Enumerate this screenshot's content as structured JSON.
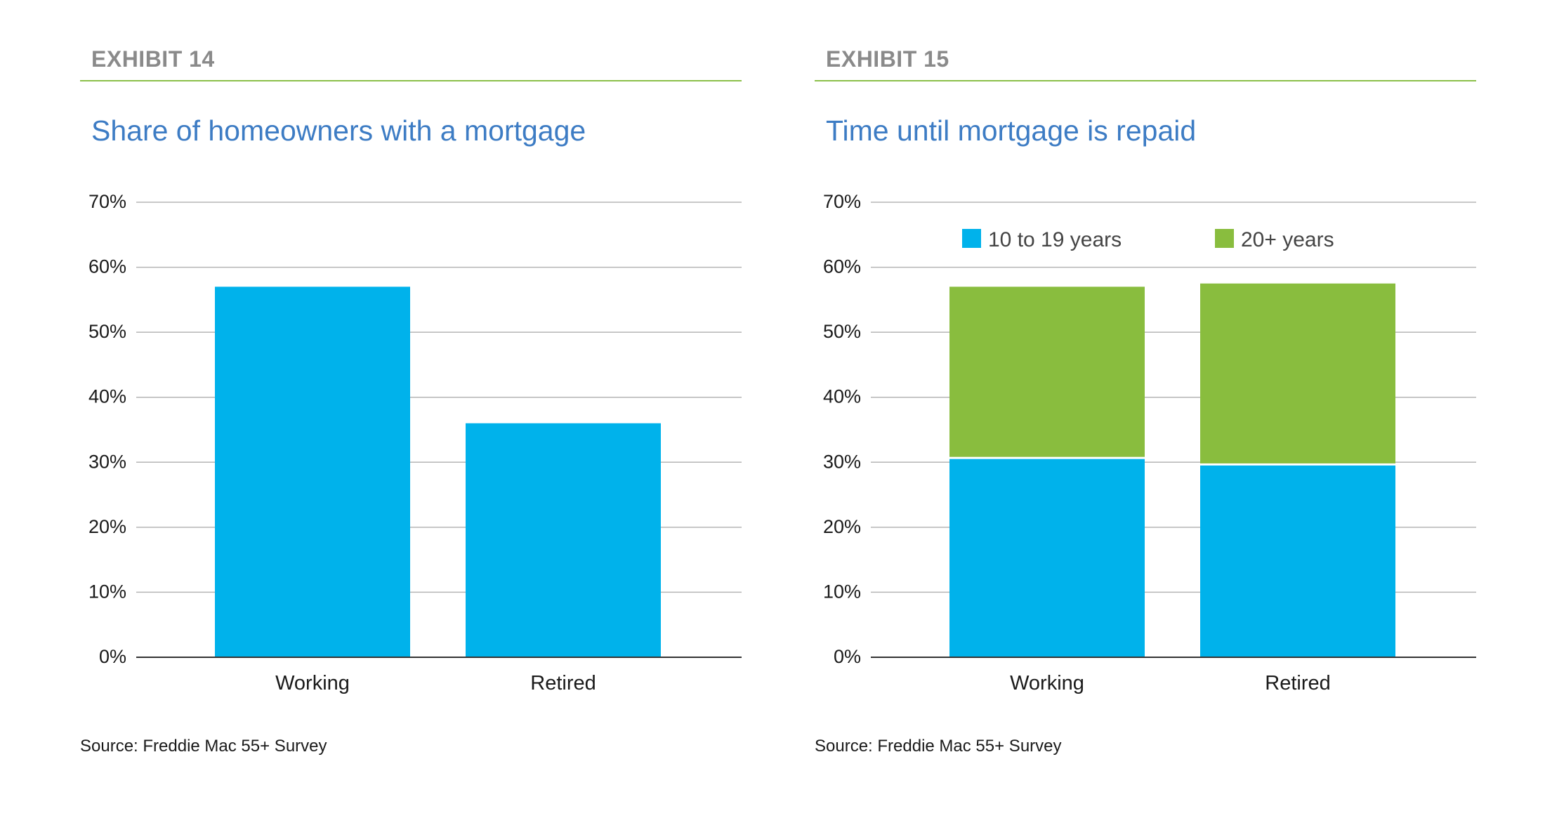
{
  "panels": [
    {
      "exhibit": "EXHIBIT 14",
      "title": "Share of homeowners with a mortgage",
      "source": "Source: Freddie Mac 55+ Survey"
    },
    {
      "exhibit": "EXHIBIT 15",
      "title": "Time until mortgage is repaid",
      "source": "Source: Freddie Mac 55+ Survey"
    }
  ],
  "colors": {
    "blue_bar": "#00b2eb",
    "green_bar": "#89bd3e",
    "exhibit_text": "#8a8a8a",
    "title_text": "#3d7cc4",
    "rule": "#8cc04a",
    "gridline": "#b5b5b5",
    "axis": "#333333"
  },
  "chart_data": [
    {
      "type": "bar",
      "title": "Share of homeowners with a mortgage",
      "categories": [
        "Working",
        "Retired"
      ],
      "series": [
        {
          "values": [
            57,
            36
          ],
          "color": "#00b2eb"
        }
      ],
      "ylim": [
        0,
        70
      ],
      "yticks": [
        0,
        10,
        20,
        30,
        40,
        50,
        60,
        70
      ],
      "ytick_labels": [
        "0%",
        "10%",
        "20%",
        "30%",
        "40%",
        "50%",
        "60%",
        "70%"
      ],
      "xlabel": "",
      "ylabel": "",
      "grid": true,
      "legend": "none"
    },
    {
      "type": "bar",
      "stacked": true,
      "title": "Time until mortgage is repaid",
      "categories": [
        "Working",
        "Retired"
      ],
      "series": [
        {
          "name": "10 to 19 years",
          "values": [
            30.5,
            29.5
          ],
          "color": "#00b2eb"
        },
        {
          "name": "20+ years",
          "values": [
            26.5,
            28
          ],
          "color": "#89bd3e"
        }
      ],
      "ylim": [
        0,
        70
      ],
      "yticks": [
        0,
        10,
        20,
        30,
        40,
        50,
        60,
        70
      ],
      "ytick_labels": [
        "0%",
        "10%",
        "20%",
        "30%",
        "40%",
        "50%",
        "60%",
        "70%"
      ],
      "xlabel": "",
      "ylabel": "",
      "grid": true,
      "legend": "top"
    }
  ]
}
